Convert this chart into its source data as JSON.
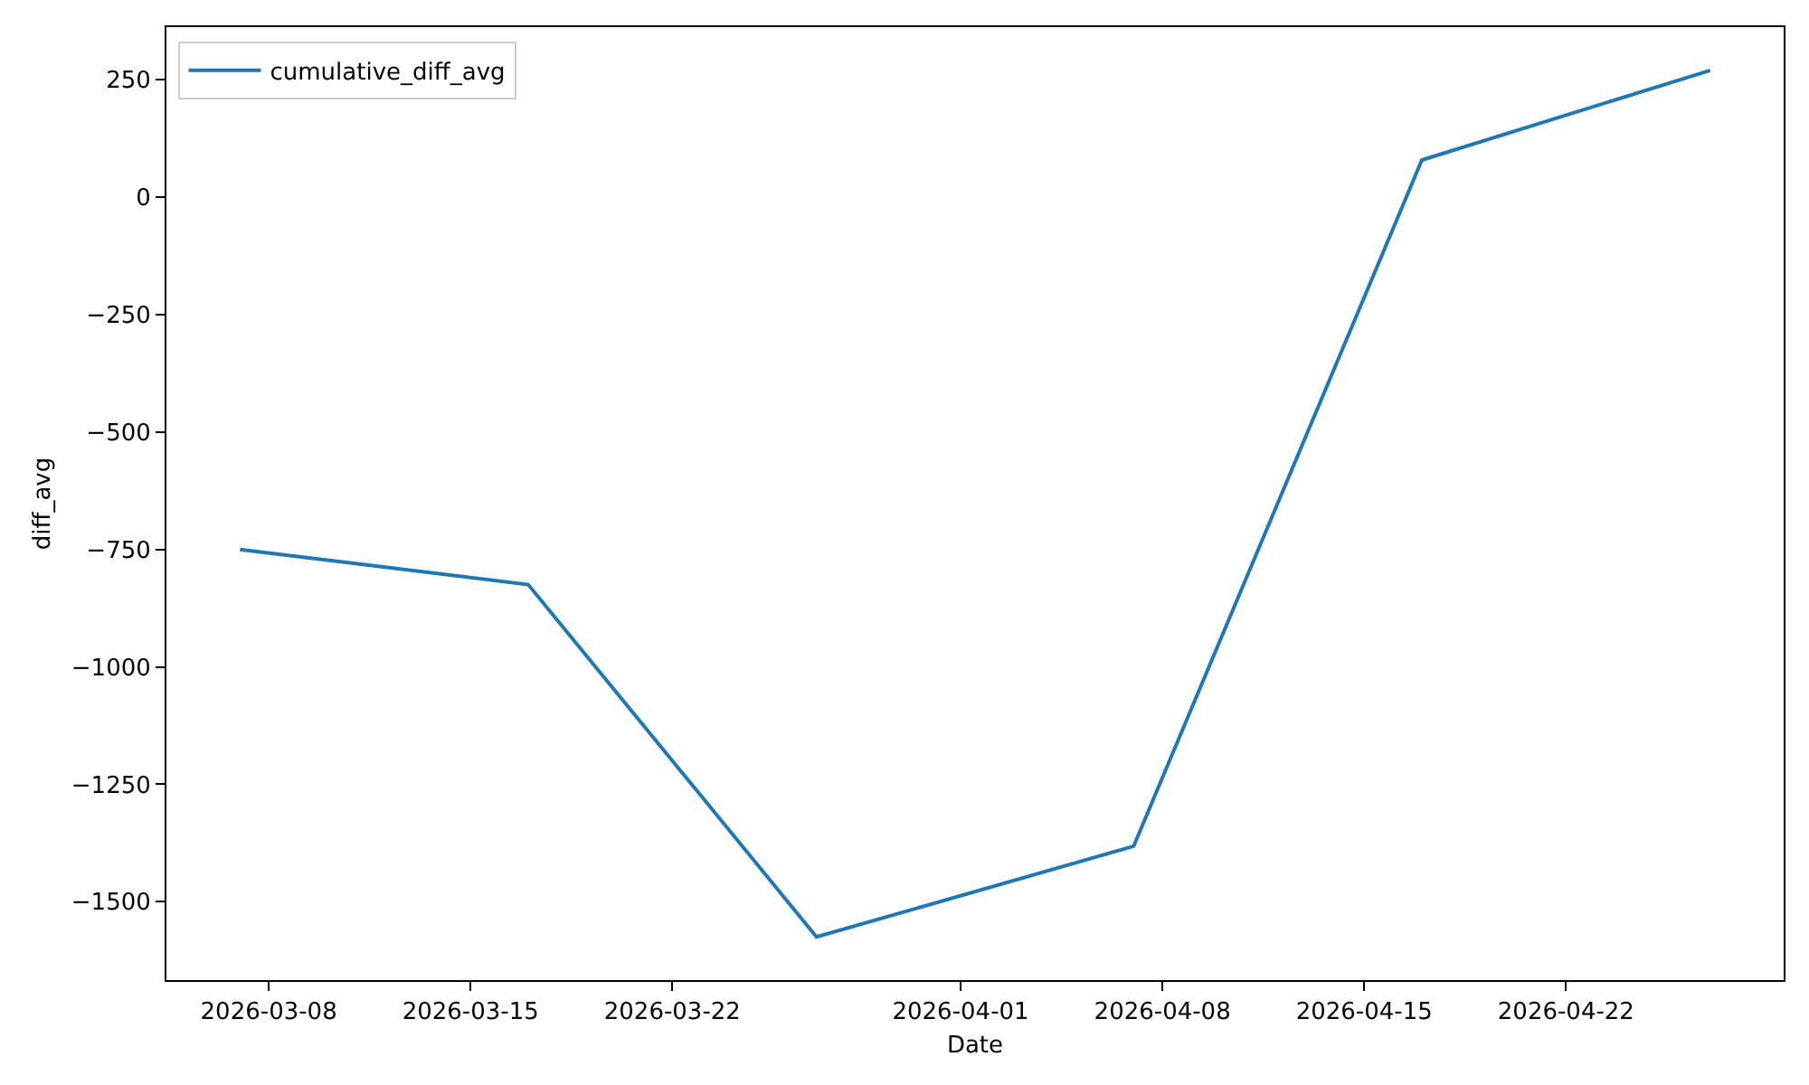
{
  "chart_data": {
    "type": "line",
    "xlabel": "Date",
    "ylabel": "diff_avg",
    "x": [
      "2026-03-07",
      "2026-03-17",
      "2026-03-27",
      "2026-04-07",
      "2026-04-17",
      "2026-04-27"
    ],
    "series": [
      {
        "name": "cumulative_diff_avg",
        "color": "#1f77b4",
        "values": [
          -750,
          -825,
          -1575,
          -1382,
          79,
          270
        ]
      }
    ],
    "xlim": [
      "2026-03-04T10:48",
      "2026-04-29T13:12"
    ],
    "xticks": [
      "2026-03-08",
      "2026-03-15",
      "2026-03-22",
      "2026-04-01",
      "2026-04-08",
      "2026-04-15",
      "2026-04-22"
    ],
    "ylim": [
      -1667,
      362
    ],
    "yticks": [
      -1500,
      -1250,
      -1000,
      -750,
      -500,
      -250,
      0,
      250
    ],
    "grid": false,
    "legend": "top left"
  }
}
